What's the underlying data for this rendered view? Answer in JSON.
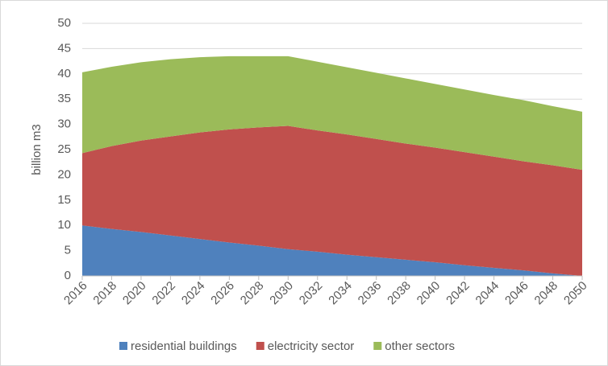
{
  "chart_data": {
    "type": "stacked-area",
    "y_label": "billion m3",
    "categories": [
      "2016",
      "2018",
      "2020",
      "2022",
      "2024",
      "2026",
      "2028",
      "2030",
      "2032",
      "2034",
      "2036",
      "2038",
      "2040",
      "2042",
      "2044",
      "2046",
      "2048",
      "2050"
    ],
    "series": [
      {
        "name": "residential buildings",
        "color": "#4f81bd",
        "values": [
          10,
          9.3,
          8.7,
          8.0,
          7.3,
          6.6,
          6.0,
          5.3,
          4.8,
          4.2,
          3.7,
          3.2,
          2.7,
          2.1,
          1.6,
          1.1,
          0.5,
          0
        ]
      },
      {
        "name": "electricity sector",
        "color": "#c0504d",
        "values": [
          14.3,
          16.4,
          18.1,
          19.6,
          21.1,
          22.4,
          23.4,
          24.4,
          24.0,
          23.8,
          23.4,
          23.0,
          22.7,
          22.4,
          22.0,
          21.6,
          21.4,
          21.0
        ]
      },
      {
        "name": "other sectors",
        "color": "#9bbb59",
        "values": [
          16.0,
          15.7,
          15.5,
          15.3,
          14.9,
          14.5,
          14.1,
          13.8,
          13.6,
          13.3,
          13.1,
          12.9,
          12.6,
          12.4,
          12.2,
          12.1,
          11.7,
          11.5
        ]
      }
    ],
    "ylim": [
      0,
      50
    ],
    "yticks": [
      0,
      5,
      10,
      15,
      20,
      25,
      30,
      35,
      40,
      45,
      50
    ],
    "grid": true,
    "legend": "bottom"
  }
}
